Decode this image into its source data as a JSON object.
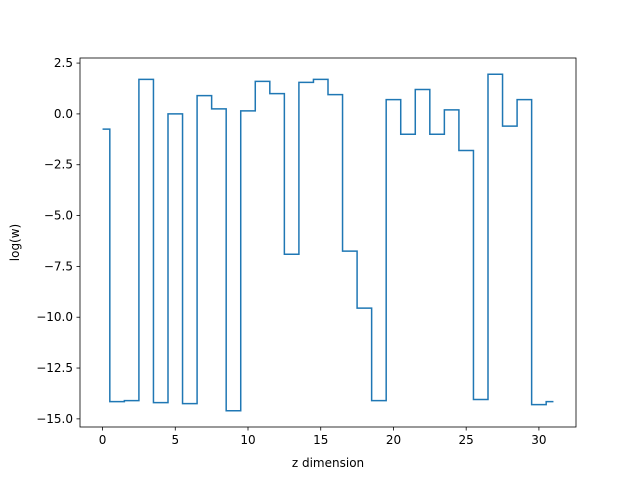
{
  "chart_data": {
    "type": "line",
    "drawstyle": "steps-mid",
    "title": "",
    "xlabel": "z dimension",
    "ylabel": "log(w)",
    "xlim": [
      -1.55,
      32.55
    ],
    "ylim": [
      -15.4,
      2.75
    ],
    "xticks": [
      0,
      5,
      10,
      15,
      20,
      25,
      30
    ],
    "yticks": [
      2.5,
      0.0,
      -2.5,
      -5.0,
      -7.5,
      -10.0,
      -12.5,
      -15.0
    ],
    "ytick_labels": [
      "2.5",
      "0.0",
      "−2.5",
      "−5.0",
      "−7.5",
      "−10.0",
      "−12.5",
      "−15.0"
    ],
    "grid": false,
    "series": [
      {
        "color": "#1f77b4",
        "x": [
          0,
          1,
          2,
          3,
          4,
          5,
          6,
          7,
          8,
          9,
          10,
          11,
          12,
          13,
          14,
          15,
          16,
          17,
          18,
          19,
          20,
          21,
          22,
          23,
          24,
          25,
          26,
          27,
          28,
          29,
          30,
          31
        ],
        "y": [
          -0.75,
          -14.15,
          -14.1,
          1.7,
          -14.2,
          0.0,
          -14.25,
          0.9,
          0.25,
          -14.6,
          0.15,
          1.6,
          1.0,
          -6.9,
          1.55,
          1.7,
          0.95,
          -6.75,
          -9.55,
          -14.1,
          0.7,
          -1.0,
          1.2,
          -1.0,
          0.2,
          -1.8,
          -14.05,
          1.95,
          -0.6,
          0.7,
          -14.3,
          -14.15
        ]
      }
    ]
  }
}
